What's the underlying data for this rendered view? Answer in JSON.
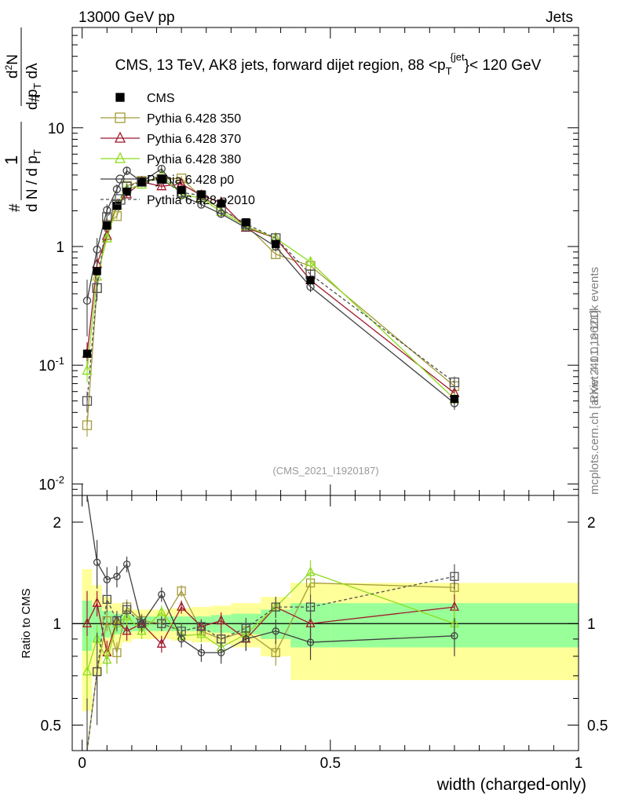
{
  "header": {
    "energy": "13000 GeV pp",
    "category": "Jets"
  },
  "side_labels": {
    "rivet": "Rivet 4.1.0, ≥ 100k events",
    "mcplots": "mcplots.cern.ch [arXiv:2401.10621]"
  },
  "colors": {
    "CMS": "#000000",
    "p350": "#a59b3a",
    "p370": "#a0182c",
    "p380": "#8ddc1e",
    "p0": "#404040",
    "p2010": "#505050",
    "band_yellow": "#ffff99",
    "band_green": "#99ff99"
  },
  "chart_data": {
    "type": "line",
    "title": "CMS, 13 TeV, AK8 jets, forward dijet region, 88 <p_T^{jet}< 120 GeV",
    "watermark": "(CMS_2021_I1920187)",
    "xlabel": "width (charged-only)",
    "ylabel_main": "1/(dN/dp_T) d²N/(dp_T dλ)",
    "ylabel_ratio": "Ratio to CMS",
    "xlim": [
      -0.02,
      1.0
    ],
    "ylim": [
      0.008,
      70
    ],
    "yscale": "log",
    "ratio_ylim": [
      0.42,
      2.4
    ],
    "ratio_yscale": "log",
    "x_ticks": [
      "0",
      "0.5",
      "1"
    ],
    "y_ticks": [
      "10^{-2}",
      "10^{-1}",
      "1",
      "10"
    ],
    "ratio_ticks": [
      "0.5",
      "1",
      "2"
    ],
    "legend": [
      "CMS",
      "Pythia 6.428 350",
      "Pythia 6.428 370",
      "Pythia 6.428 380",
      "Pythia 6.428 p0",
      "Pythia 6.428 p2010"
    ],
    "bins": [
      [
        0,
        0.02
      ],
      [
        0.02,
        0.04
      ],
      [
        0.04,
        0.06
      ],
      [
        0.06,
        0.08
      ],
      [
        0.08,
        0.1
      ],
      [
        0.1,
        0.14
      ],
      [
        0.14,
        0.18
      ],
      [
        0.18,
        0.22
      ],
      [
        0.22,
        0.26
      ],
      [
        0.26,
        0.3
      ],
      [
        0.3,
        0.36
      ],
      [
        0.36,
        0.42
      ],
      [
        0.42,
        0.5
      ],
      [
        0.5,
        1.0
      ]
    ],
    "x": [
      0.01,
      0.03,
      0.05,
      0.07,
      0.09,
      0.12,
      0.16,
      0.2,
      0.24,
      0.28,
      0.33,
      0.39,
      0.46,
      0.75
    ],
    "cms": [
      0.125,
      0.62,
      1.5,
      2.2,
      2.9,
      3.5,
      3.7,
      3.0,
      2.75,
      2.3,
      1.6,
      1.05,
      0.52,
      0.052
    ],
    "band_green": [
      0.17,
      0.12,
      0.09,
      0.07,
      0.06,
      0.05,
      0.05,
      0.05,
      0.05,
      0.06,
      0.07,
      0.1,
      0.15,
      0.15
    ],
    "band_yellow": [
      0.45,
      0.3,
      0.2,
      0.15,
      0.12,
      0.1,
      0.1,
      0.11,
      0.12,
      0.13,
      0.15,
      0.2,
      0.32,
      0.32
    ],
    "series": [
      {
        "name": "Pythia 6.428 350",
        "marker": "square",
        "line": "solid",
        "color": "#a59b3a",
        "ratio": [
          0.25,
          0.72,
          1.02,
          0.82,
          1.12,
          1.02,
          1.0,
          1.25,
          0.95,
          0.9,
          0.95,
          0.82,
          1.32,
          1.28
        ],
        "rerr": [
          0.2,
          0.08,
          0.07,
          0.06,
          0.06,
          0.05,
          0.05,
          0.05,
          0.05,
          0.06,
          0.07,
          0.07,
          0.1,
          0.1
        ]
      },
      {
        "name": "Pythia 6.428 370",
        "marker": "triangle",
        "line": "solid",
        "color": "#a0182c",
        "ratio": [
          1.0,
          1.15,
          0.82,
          1.02,
          0.95,
          1.0,
          0.87,
          1.12,
          0.98,
          1.02,
          0.9,
          1.12,
          1.0,
          1.12
        ],
        "rerr": [
          0.25,
          0.1,
          0.07,
          0.06,
          0.06,
          0.05,
          0.05,
          0.05,
          0.05,
          0.06,
          0.07,
          0.08,
          0.1,
          0.1
        ]
      },
      {
        "name": "Pythia 6.428 380",
        "marker": "triangle",
        "line": "solid",
        "color": "#8ddc1e",
        "ratio": [
          0.72,
          0.9,
          0.78,
          1.0,
          1.05,
          0.95,
          1.08,
          0.92,
          0.93,
          0.85,
          0.93,
          1.12,
          1.42,
          1.0
        ],
        "rerr": [
          0.2,
          0.09,
          0.07,
          0.06,
          0.06,
          0.05,
          0.05,
          0.05,
          0.05,
          0.06,
          0.07,
          0.08,
          0.12,
          0.1
        ]
      },
      {
        "name": "Pythia 6.428 p0",
        "marker": "circle",
        "line": "solid",
        "color": "#404040",
        "ratio": [
          2.8,
          1.52,
          1.35,
          1.38,
          1.5,
          1.0,
          1.22,
          0.9,
          0.82,
          0.82,
          0.9,
          0.95,
          0.88,
          0.92
        ],
        "rerr": [
          0.5,
          0.25,
          0.12,
          0.1,
          0.08,
          0.06,
          0.06,
          0.05,
          0.05,
          0.06,
          0.07,
          0.08,
          0.1,
          0.12
        ]
      },
      {
        "name": "Pythia 6.428 p2010",
        "marker": "square",
        "line": "dashed",
        "color": "#505050",
        "ratio": [
          0.4,
          0.72,
          1.18,
          1.02,
          1.1,
          1.0,
          1.0,
          0.95,
          0.98,
          0.9,
          0.97,
          1.12,
          1.12,
          1.38
        ],
        "rerr": [
          0.2,
          0.22,
          0.1,
          0.07,
          0.06,
          0.05,
          0.05,
          0.05,
          0.05,
          0.06,
          0.07,
          0.08,
          0.1,
          0.12
        ]
      }
    ]
  }
}
